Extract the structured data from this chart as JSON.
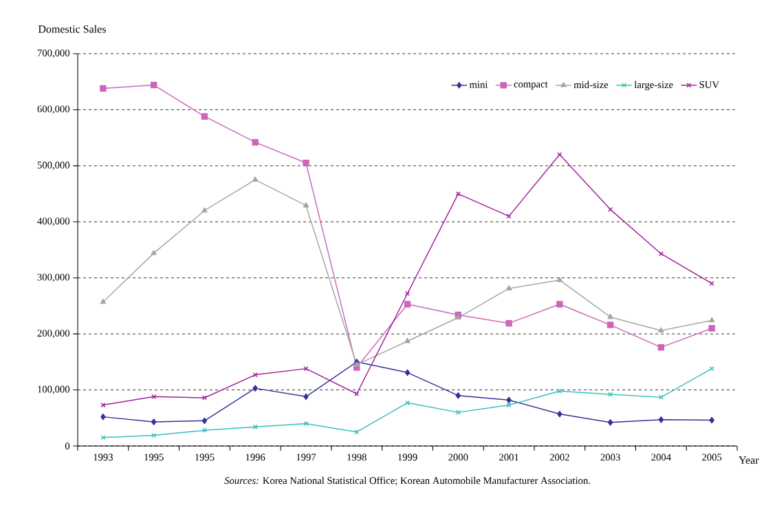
{
  "chart_data": {
    "type": "line",
    "ylabel": "Domestic Sales",
    "xlabel": "Year",
    "categories": [
      "1993",
      "1995",
      "1995",
      "1996",
      "1997",
      "1998",
      "1999",
      "2000",
      "2001",
      "2002",
      "2003",
      "2004",
      "2005"
    ],
    "series": [
      {
        "name": "mini",
        "color": "#333399",
        "marker": "diamond",
        "values": [
          52000,
          43000,
          45000,
          103000,
          88000,
          150000,
          131000,
          90000,
          82000,
          57000,
          42000,
          47000,
          46000
        ]
      },
      {
        "name": "compact",
        "color": "#cc66bb",
        "marker": "square",
        "values": [
          638000,
          644000,
          588000,
          542000,
          505000,
          140000,
          253000,
          234000,
          219000,
          253000,
          216000,
          176000,
          210000
        ]
      },
      {
        "name": "mid-size",
        "color": "#a6a6a6",
        "marker": "triangle",
        "values": [
          257000,
          344000,
          420000,
          475000,
          429000,
          145000,
          187000,
          229000,
          281000,
          296000,
          230000,
          206000,
          224000
        ]
      },
      {
        "name": "large-size",
        "color": "#33c0b8",
        "marker": "cross",
        "values": [
          15000,
          19000,
          28000,
          34000,
          40000,
          25000,
          77000,
          60000,
          73000,
          98000,
          92000,
          87000,
          138000
        ]
      },
      {
        "name": "SUV",
        "color": "#a0209a",
        "marker": "cross",
        "values": [
          73000,
          88000,
          86000,
          127000,
          138000,
          93000,
          272000,
          450000,
          410000,
          520000,
          422000,
          343000,
          290000
        ]
      }
    ],
    "ylim": [
      0,
      700000
    ],
    "yticks": [
      0,
      {
        "value": 100000,
        "label": "100,000"
      },
      {
        "value": 200000,
        "label": "200,000"
      },
      {
        "value": 300000,
        "label": "300,000"
      },
      {
        "value": 400000,
        "label": "400,000"
      },
      {
        "value": 500000,
        "label": "500,000"
      },
      {
        "value": 600000,
        "label": "600,000"
      },
      {
        "value": 700000,
        "label": "700,000"
      }
    ],
    "grid": "y",
    "legend": "top right",
    "annotations": [
      "*Sources:* Korea National Statistical Office; Korean Automobile Manufacturer Association."
    ]
  }
}
